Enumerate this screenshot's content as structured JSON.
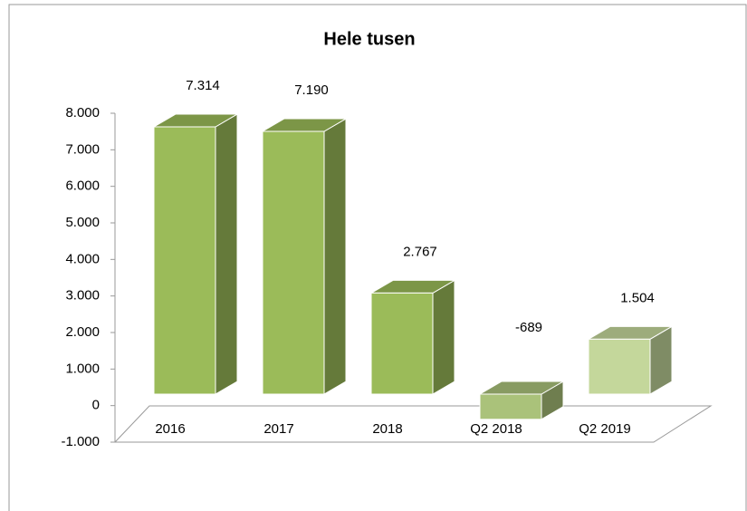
{
  "chart_data": {
    "type": "bar3d",
    "title": "Hele tusen",
    "categories": [
      "2016",
      "2017",
      "2018",
      "Q2 2018",
      "Q2 2019"
    ],
    "values": [
      7314,
      7190,
      2767,
      -689,
      1504
    ],
    "value_labels": [
      "7.314",
      "7.190",
      "2.767",
      "-689",
      "1.504"
    ],
    "colors": [
      "#9bbb59",
      "#9bbb59",
      "#9bbb59",
      "#aac27a",
      "#c4d79b"
    ],
    "ylim": [
      -1000,
      8000
    ],
    "yticks": [
      {
        "value": -1000,
        "label": "-1.000"
      },
      0,
      {
        "value": 1000,
        "label": "1.000"
      },
      {
        "value": 2000,
        "label": "2.000"
      },
      {
        "value": 3000,
        "label": "3.000"
      },
      {
        "value": 4000,
        "label": "4.000"
      },
      {
        "value": 5000,
        "label": "5.000"
      },
      {
        "value": 6000,
        "label": "6.000"
      },
      {
        "value": 7000,
        "label": "7.000"
      },
      {
        "value": 8000,
        "label": "8.000"
      }
    ]
  }
}
